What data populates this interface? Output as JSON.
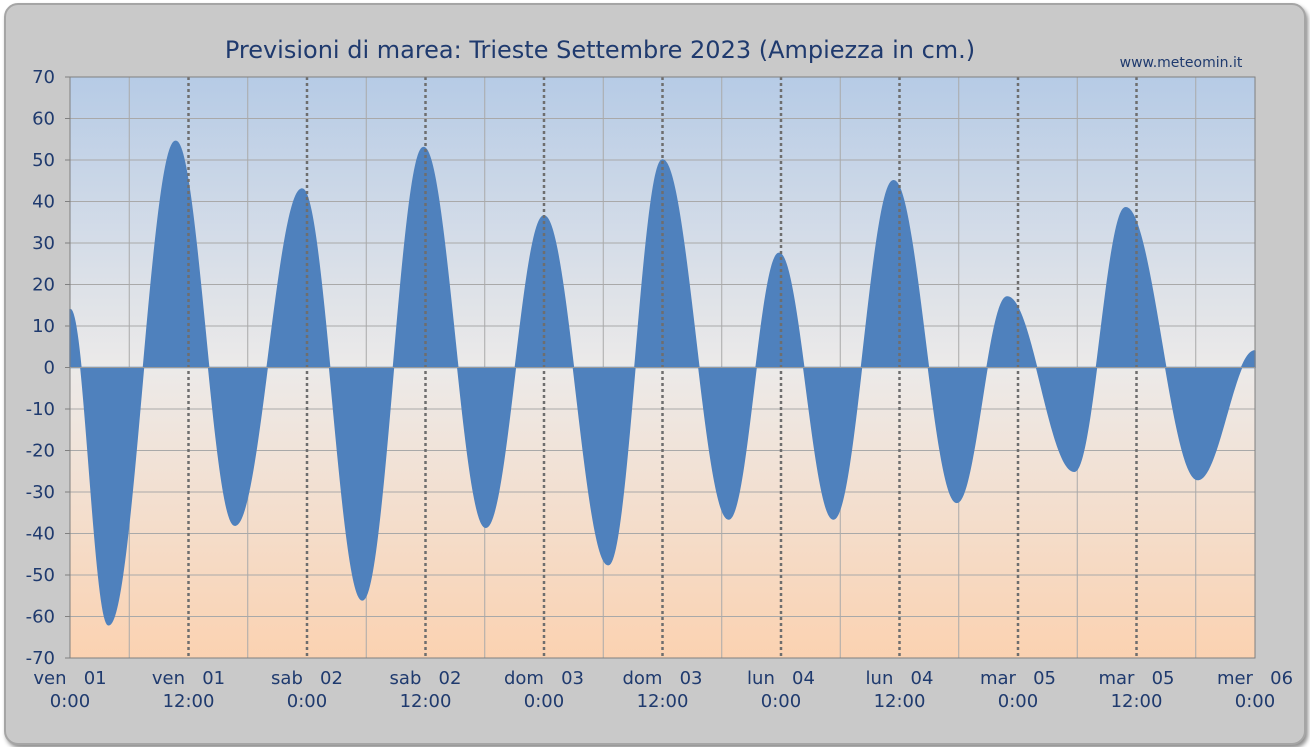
{
  "chart_data": {
    "type": "area",
    "title": "Previsioni di marea: Trieste Settembre 2023 (Ampiezza in cm.)",
    "source": "www.meteomin.it",
    "ylim": [
      -70,
      70
    ],
    "yticks": [
      70,
      60,
      50,
      40,
      30,
      20,
      10,
      0,
      -10,
      -20,
      -30,
      -40,
      -50,
      -60,
      -70
    ],
    "xlim_hours": [
      0,
      120
    ],
    "xtick_labels": [
      {
        "day": "ven   01",
        "time": "0:00"
      },
      {
        "day": "ven   01",
        "time": "12:00"
      },
      {
        "day": "sab   02",
        "time": "0:00"
      },
      {
        "day": "sab   02",
        "time": "12:00"
      },
      {
        "day": "dom   03",
        "time": "0:00"
      },
      {
        "day": "dom   03",
        "time": "12:00"
      },
      {
        "day": "lun   04",
        "time": "0:00"
      },
      {
        "day": "lun   04",
        "time": "12:00"
      },
      {
        "day": "mar   05",
        "time": "0:00"
      },
      {
        "day": "mar   05",
        "time": "12:00"
      },
      {
        "day": "mer   06",
        "time": "0:00"
      }
    ],
    "grid": true,
    "series": [
      {
        "color": "#4f81bd",
        "unit_x": "hours from ven 01 0:00",
        "x": [
          0,
          3.9,
          10.7,
          16.7,
          23.5,
          29.6,
          35.8,
          42.1,
          48.0,
          54.5,
          60.0,
          66.7,
          71.8,
          77.3,
          83.4,
          89.8,
          94.9,
          101.7,
          106.9,
          114.2,
          120
        ],
        "y": [
          14,
          -62,
          54.5,
          -38,
          43,
          -56,
          53,
          -38.5,
          36.5,
          -47.5,
          50,
          -36.5,
          27.5,
          -36.5,
          45,
          -32.5,
          17,
          -25,
          38.5,
          -27,
          4
        ]
      }
    ]
  }
}
